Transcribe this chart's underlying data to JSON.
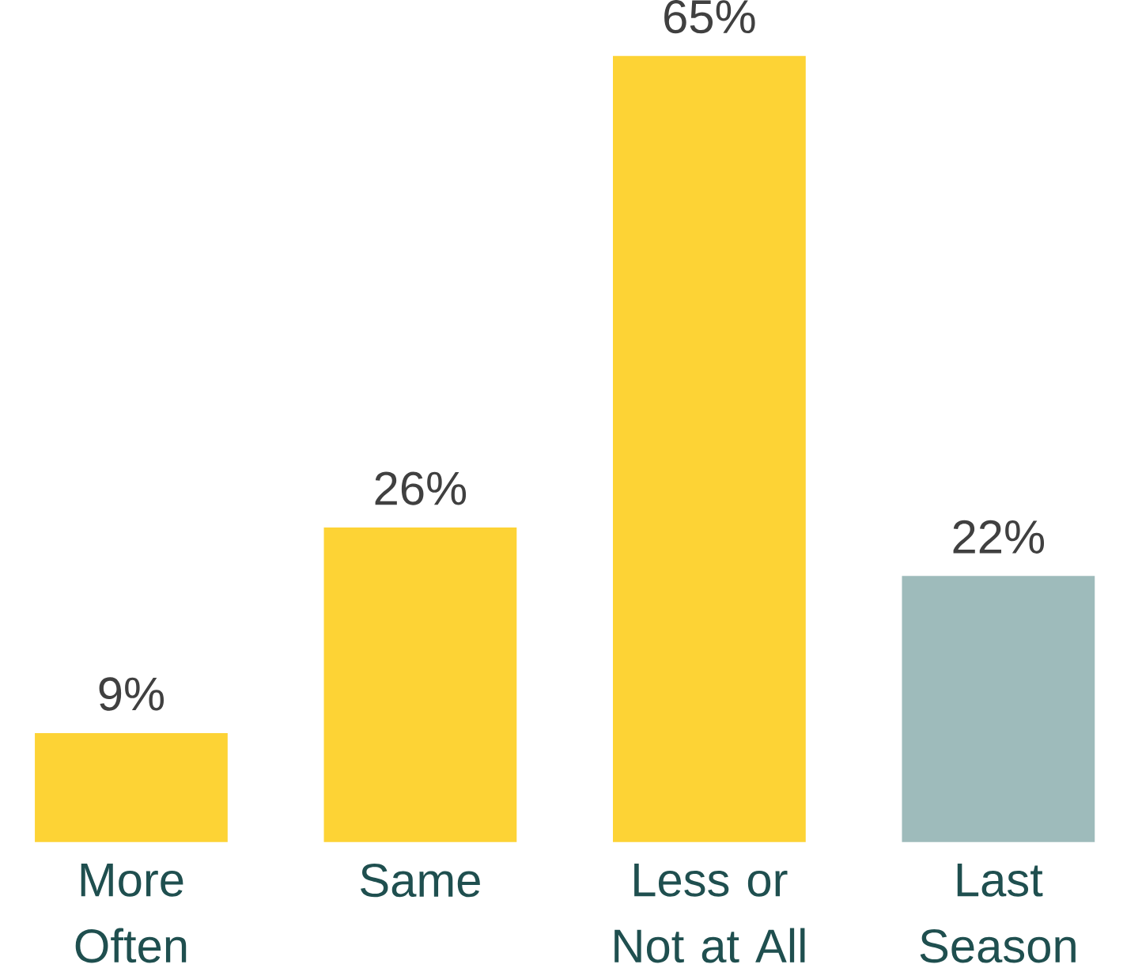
{
  "chart_data": {
    "type": "bar",
    "categories": [
      "More Often",
      "Same",
      "Less or Not at All",
      "Last Season"
    ],
    "values": [
      9,
      26,
      65,
      22
    ],
    "colors": [
      "#fdd335",
      "#fdd335",
      "#fdd335",
      "#9ebbbb"
    ],
    "value_labels": [
      "9%",
      "26%",
      "65%",
      "22%"
    ]
  }
}
